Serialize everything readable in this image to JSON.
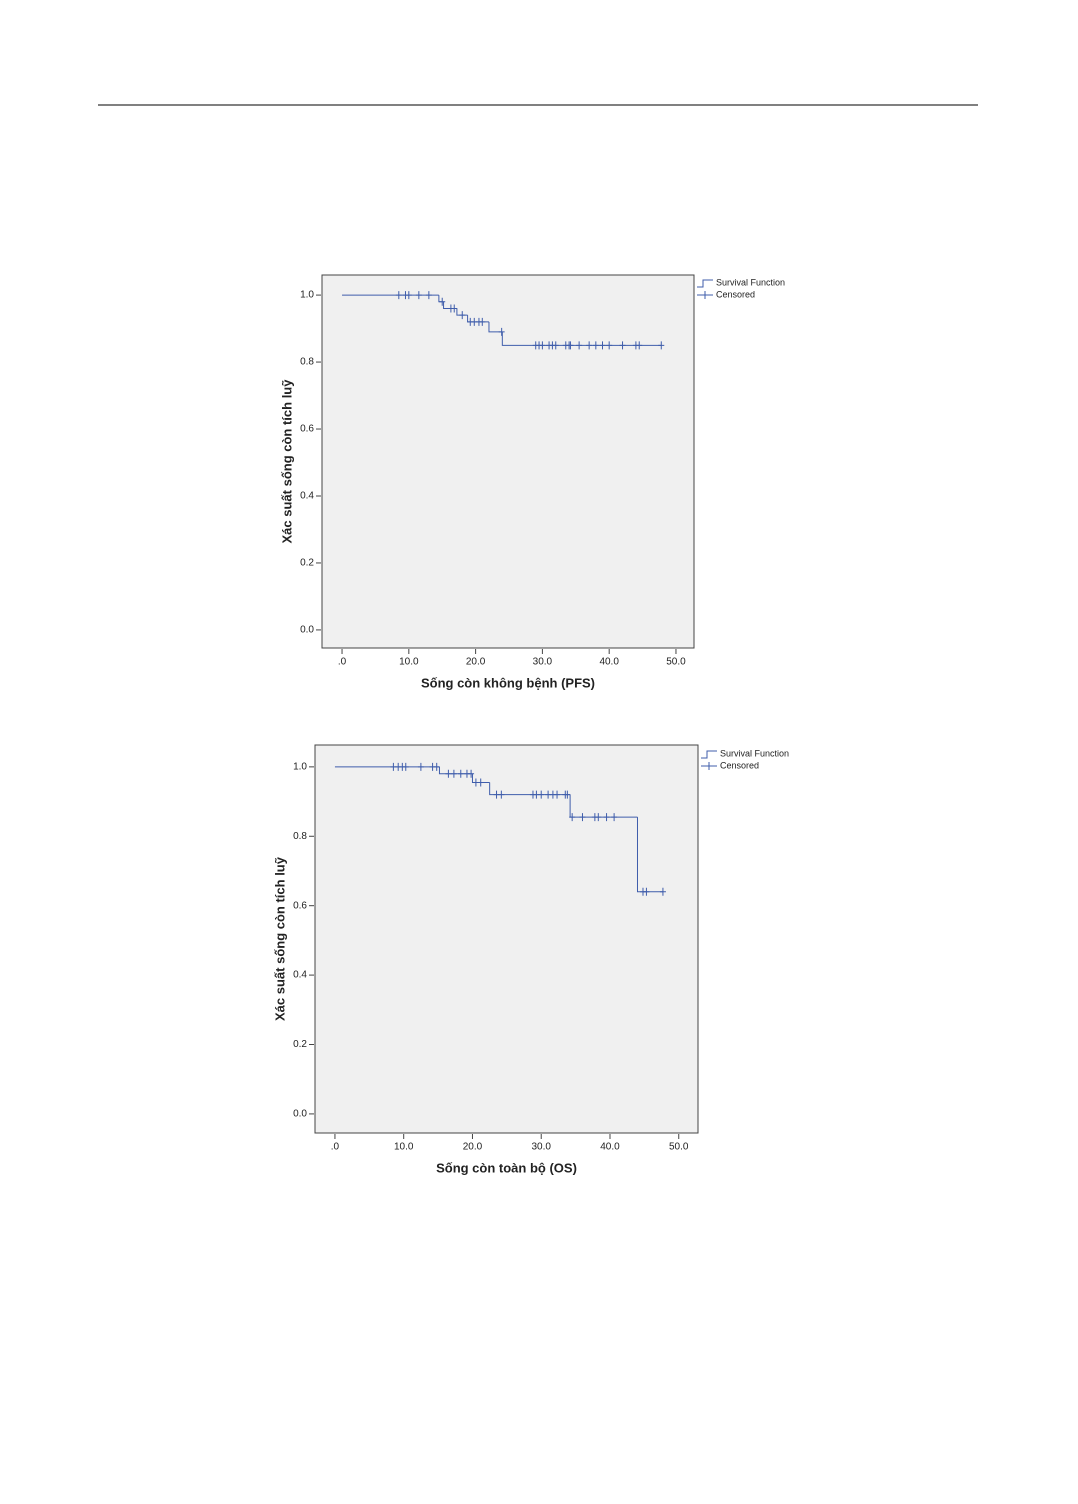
{
  "chart_data": [
    {
      "type": "line",
      "step": true,
      "xlabel": "Sống còn không bệnh (PFS)",
      "ylabel": "Xác suất sống còn tích luỹ",
      "xlim": [
        -3.0,
        52.7
      ],
      "ylim": [
        -0.054,
        1.06
      ],
      "xticks": [
        {
          "value": 0,
          "label": ".0"
        },
        {
          "value": 10,
          "label": "10.0"
        },
        {
          "value": 20,
          "label": "20.0"
        },
        {
          "value": 30,
          "label": "30.0"
        },
        {
          "value": 40,
          "label": "40.0"
        },
        {
          "value": 50,
          "label": "50.0"
        }
      ],
      "yticks": [
        {
          "value": 0,
          "label": "0.0"
        },
        0.2,
        0.4,
        0.6,
        0.8,
        {
          "value": 1,
          "label": "1.0"
        }
      ],
      "series": [
        {
          "name": "Survival Function",
          "color": "#3f5dab",
          "x": [
            0,
            14.5,
            15.2,
            17.2,
            18.8,
            22.0,
            24.0,
            47.8
          ],
          "values": [
            1.0,
            0.98,
            0.96,
            0.94,
            0.92,
            0.89,
            0.85,
            0.85
          ]
        },
        {
          "name": "Censored",
          "color": "#3f5dab",
          "x": [
            8.5,
            9.5,
            10.0,
            11.5,
            13.0,
            15.0,
            16.3,
            16.8,
            18.0,
            19.2,
            19.8,
            20.5,
            21.0,
            23.9,
            29.0,
            29.5,
            30.0,
            31.0,
            31.5,
            32.0,
            33.5,
            34.0,
            34.2,
            35.5,
            37.0,
            38.0,
            39.0,
            40.0,
            42.0,
            44.0,
            44.5,
            47.8
          ],
          "values": [
            1.0,
            1.0,
            1.0,
            1.0,
            1.0,
            0.98,
            0.96,
            0.96,
            0.94,
            0.92,
            0.92,
            0.92,
            0.92,
            0.89,
            0.85,
            0.85,
            0.85,
            0.85,
            0.85,
            0.85,
            0.85,
            0.85,
            0.85,
            0.85,
            0.85,
            0.85,
            0.85,
            0.85,
            0.85,
            0.85,
            0.85,
            0.85
          ]
        }
      ]
    },
    {
      "type": "line",
      "step": true,
      "xlabel": "Sống còn toàn bộ (OS)",
      "ylabel": "Xác suất sống còn tích luỹ",
      "xlim": [
        -2.9,
        52.8
      ],
      "ylim": [
        -0.055,
        1.063
      ],
      "xticks": [
        {
          "value": 0,
          "label": ".0"
        },
        {
          "value": 10,
          "label": "10.0"
        },
        {
          "value": 20,
          "label": "20.0"
        },
        {
          "value": 30,
          "label": "30.0"
        },
        {
          "value": 40,
          "label": "40.0"
        },
        {
          "value": 50,
          "label": "50.0"
        }
      ],
      "yticks": [
        {
          "value": 0,
          "label": "0.0"
        },
        0.2,
        0.4,
        0.6,
        0.8,
        {
          "value": 1,
          "label": "1.0"
        }
      ],
      "series": [
        {
          "name": "Survival Function",
          "color": "#3f5dab",
          "x": [
            0,
            15.2,
            20.0,
            22.5,
            34.2,
            44.0,
            47.7
          ],
          "values": [
            1.0,
            0.98,
            0.955,
            0.92,
            0.855,
            0.64,
            0.64
          ]
        },
        {
          "name": "Censored",
          "color": "#3f5dab",
          "x": [
            8.5,
            9.2,
            9.8,
            10.3,
            12.5,
            14.2,
            14.8,
            16.5,
            17.3,
            18.3,
            19.2,
            19.8,
            20.5,
            21.2,
            23.5,
            24.2,
            28.8,
            29.3,
            30.0,
            31.0,
            31.7,
            32.3,
            33.5,
            33.8,
            34.5,
            36.0,
            37.8,
            38.3,
            39.5,
            40.6,
            44.8,
            45.3,
            47.7
          ],
          "values": [
            1.0,
            1.0,
            1.0,
            1.0,
            1.0,
            1.0,
            1.0,
            0.98,
            0.98,
            0.98,
            0.98,
            0.98,
            0.955,
            0.955,
            0.92,
            0.92,
            0.92,
            0.92,
            0.92,
            0.92,
            0.92,
            0.92,
            0.92,
            0.92,
            0.855,
            0.855,
            0.855,
            0.855,
            0.855,
            0.855,
            0.64,
            0.64,
            0.64
          ]
        }
      ]
    }
  ]
}
